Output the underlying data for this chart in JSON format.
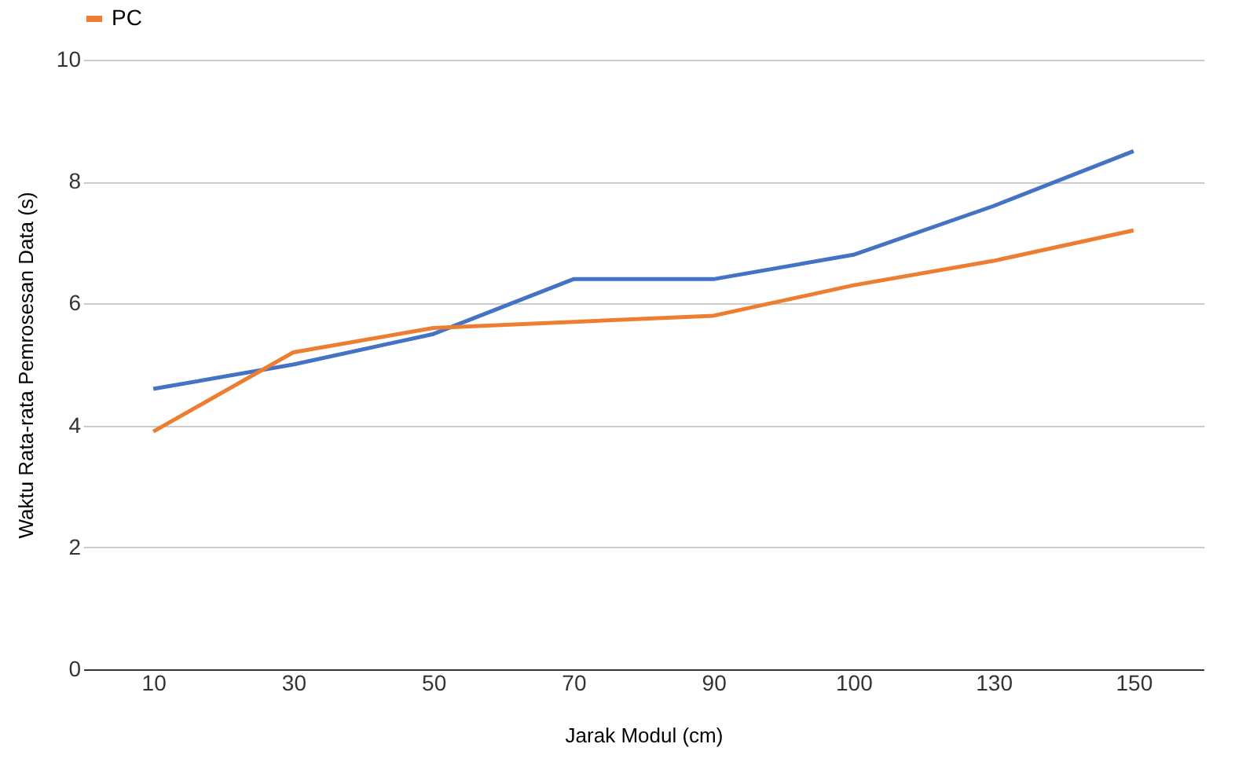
{
  "chart_data": {
    "type": "line",
    "xlabel": "Jarak Modul (cm)",
    "ylabel": "Waktu Rata-rata Pemrosesan Data (s)",
    "categories": [
      "10",
      "30",
      "50",
      "70",
      "90",
      "100",
      "130",
      "150"
    ],
    "series": [
      {
        "color": "#4472c4",
        "values": [
          4.6,
          5.0,
          5.5,
          6.4,
          6.4,
          6.8,
          7.6,
          8.5
        ]
      },
      {
        "name": "PC",
        "color": "#ed7d31",
        "values": [
          3.9,
          5.2,
          5.6,
          5.7,
          5.8,
          6.3,
          6.7,
          7.2
        ]
      }
    ],
    "ylim": [
      0,
      10
    ],
    "yticks": [
      0,
      2,
      4,
      6,
      8,
      10
    ],
    "grid": "y",
    "legend": "top",
    "marker": "none",
    "line_style": "solid"
  }
}
